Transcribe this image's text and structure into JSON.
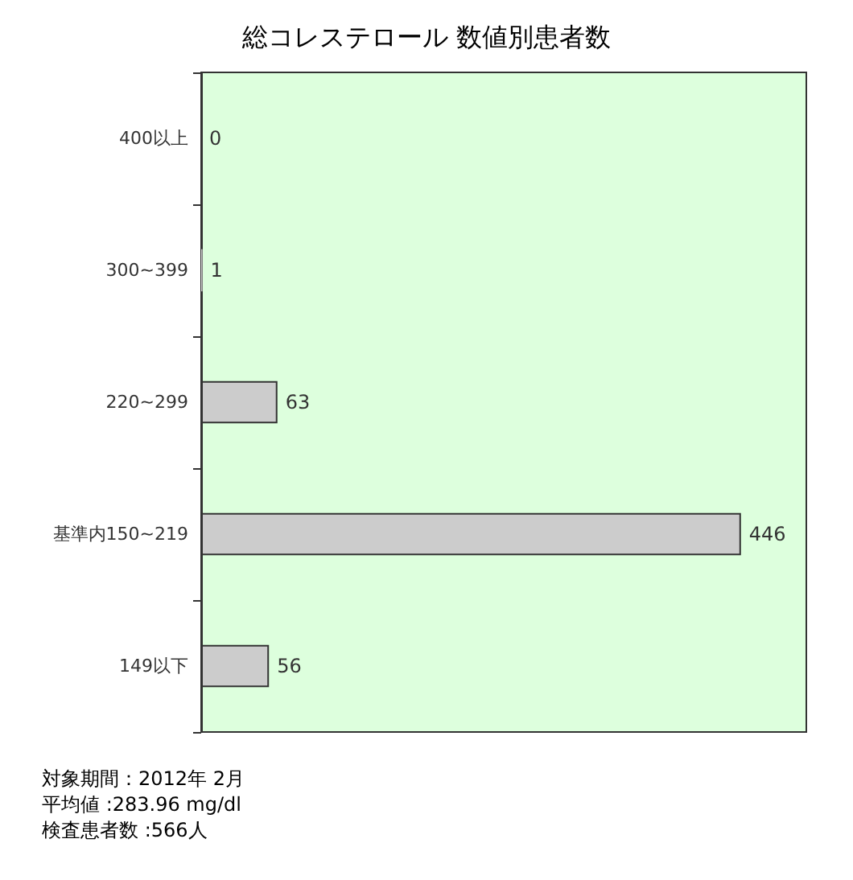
{
  "chart_data": {
    "type": "bar",
    "orientation": "horizontal",
    "title": "総コレステロール 数値別患者数",
    "categories": [
      "400以上",
      "300~399",
      "220~299",
      "基準内150~219",
      "149以下"
    ],
    "values": [
      0,
      1,
      63,
      446,
      56
    ],
    "color": "#cccccc",
    "data_labels": true,
    "xlim": [
      0,
      500
    ],
    "tick_labels": "y",
    "grid": false,
    "annotations": [
      "対象期間：2012年 2月",
      "平均値 :283.96 mg/dl",
      "検査患者数 :566人"
    ]
  }
}
